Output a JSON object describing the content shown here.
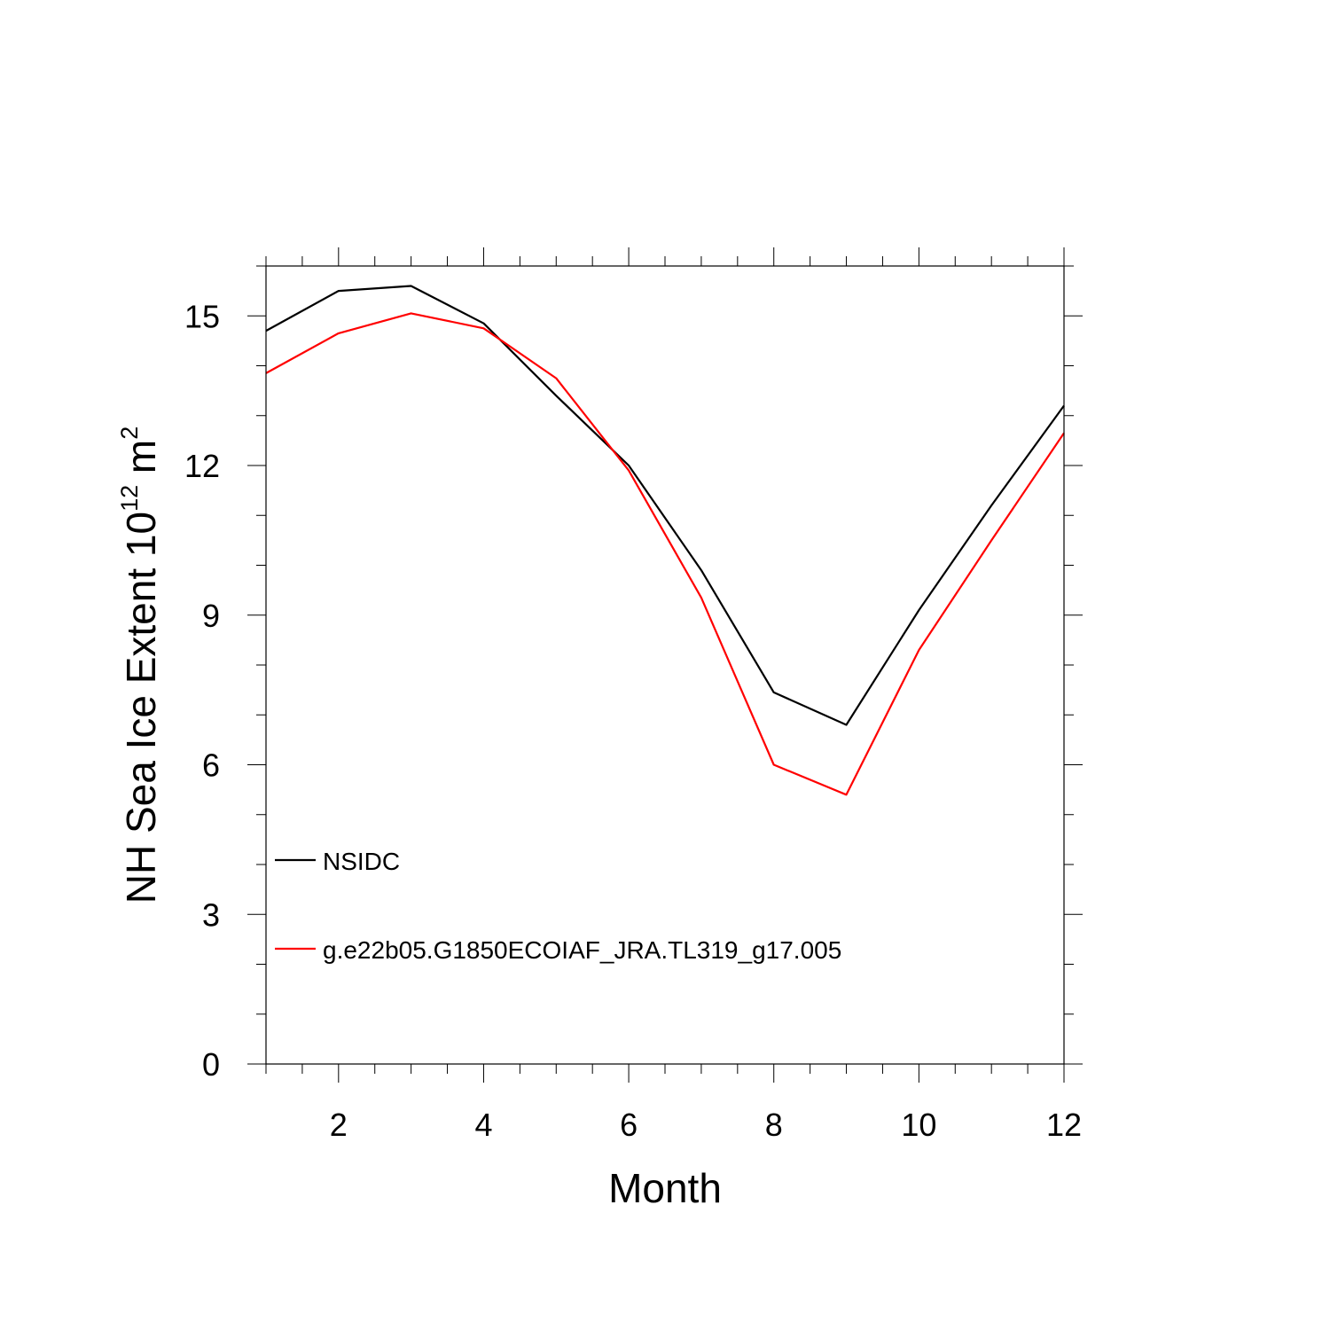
{
  "chart_data": {
    "type": "line",
    "title": "",
    "xlabel": "Month",
    "ylabel": {
      "text": "NH Sea Ice Extent 10",
      "exp1": "12",
      "unit": " m",
      "exp2": "2"
    },
    "xlim": [
      1,
      12
    ],
    "ylim": [
      0,
      16
    ],
    "xticks": [
      2,
      4,
      6,
      8,
      10,
      12
    ],
    "yticks": [
      0,
      3,
      6,
      9,
      12,
      15
    ],
    "x": [
      1,
      2,
      3,
      4,
      5,
      6,
      7,
      8,
      9,
      10,
      11,
      12
    ],
    "series": [
      {
        "name": "NSIDC",
        "color": "#000000",
        "values": [
          14.7,
          15.5,
          15.6,
          14.85,
          13.4,
          12.0,
          9.9,
          7.45,
          6.8,
          9.1,
          11.2,
          13.2
        ]
      },
      {
        "name": "g.e22b05.G1850ECOIAF_JRA.TL319_g17.005",
        "color": "#ff0000",
        "values": [
          13.85,
          14.65,
          15.05,
          14.75,
          13.75,
          11.9,
          9.35,
          6.0,
          5.4,
          8.3,
          10.5,
          12.65
        ]
      }
    ],
    "legend": "inside lower-left",
    "grid": false
  }
}
